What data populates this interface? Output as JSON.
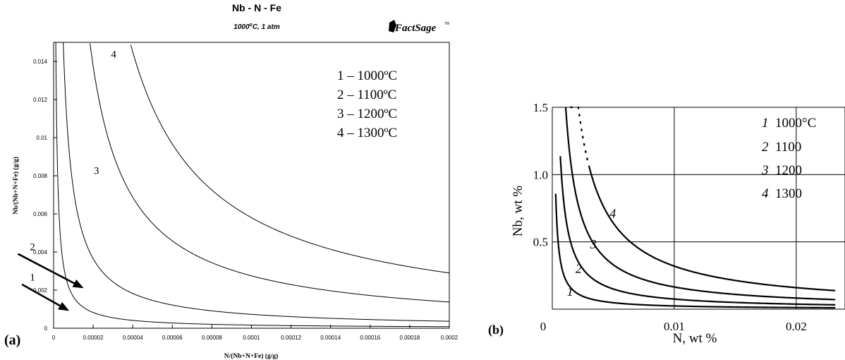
{
  "colors": {
    "curve": "#000000",
    "axis": "#000000",
    "grid": "#000000",
    "background": "#ffffff"
  },
  "chart_data": [
    {
      "id": "a",
      "type": "line",
      "panel_label": "(a)",
      "title": "Nb - N - Fe",
      "subtitle_pre": "1000",
      "subtitle_deg": "o",
      "subtitle_post": "C, 1 atm",
      "logo": "FactSage",
      "logo_mark": "TM",
      "xlabel": "N/(Nb+N+Fe) (g/g)",
      "ylabel": "Nb/(Nb+N+Fe) (g/g)",
      "xlim": [
        0,
        0.0002
      ],
      "ylim": [
        0,
        0.015
      ],
      "xticks": [
        0,
        2e-05,
        4e-05,
        6e-05,
        8e-05,
        0.0001,
        0.00012,
        0.00014,
        0.00016,
        0.00018,
        0.0002
      ],
      "xtick_labels": [
        "0",
        "0.00002",
        "0.00004",
        "0.00006",
        "0.00008",
        "0.0001",
        "0.00012",
        "0.00014",
        "0.00016",
        "0.00018",
        "0.0002"
      ],
      "yticks": [
        0,
        0.002,
        0.004,
        0.006,
        0.008,
        0.01,
        0.012,
        0.014
      ],
      "ytick_labels": [
        "0",
        "0.002",
        "0.004",
        "0.006",
        "0.008",
        "0.01",
        "0.012",
        "0.014"
      ],
      "grid": false,
      "legend": {
        "placement": "top-right",
        "entries": [
          "1 – 1000ºC",
          "2 – 1100ºC",
          "3 – 1200ºC",
          "4 – 1300ºC"
        ]
      },
      "series": [
        {
          "label": "1",
          "k": 1.65e-08,
          "x_start": 1.1e-06,
          "label_at": [
            -1.2e-05,
            0.0025
          ]
        },
        {
          "label": "2",
          "k": 7.3e-08,
          "x_start": 4.8e-06,
          "label_at": [
            -1.2e-05,
            0.0041
          ]
        },
        {
          "label": "3",
          "k": 2.75e-07,
          "x_start": 1.84e-05,
          "label_at": [
            2.03e-05,
            0.0081
          ]
        },
        {
          "label": "4",
          "k": 5.8e-07,
          "x_start": 3.9e-05,
          "label_at": [
            2.9e-05,
            0.0142
          ]
        }
      ],
      "arrows": [
        {
          "from": [
            -1.6e-05,
            0.0023
          ],
          "to": [
            7.9e-06,
            0.00091
          ]
        },
        {
          "from": [
            -1.8e-05,
            0.0039
          ],
          "to": [
            1.52e-05,
            0.0021
          ]
        }
      ]
    },
    {
      "id": "b",
      "type": "line",
      "panel_label": "(b)",
      "xlabel": "N, wt %",
      "ylabel": "Nb, wt %",
      "xlim": [
        0,
        0.024
      ],
      "ylim": [
        0,
        1.5
      ],
      "xticks": [
        0,
        0.01,
        0.02
      ],
      "xtick_labels": [
        "0",
        "0.01",
        "0.02"
      ],
      "yticks": [
        0.5,
        1.0,
        1.5
      ],
      "ytick_labels": [
        "0.5",
        "1.0",
        "1.5"
      ],
      "grid": true,
      "legend": {
        "placement": "top-right",
        "entries": [
          {
            "num": "1",
            "text": "1000°C"
          },
          {
            "num": "2",
            "text": "1100"
          },
          {
            "num": "3",
            "text": "1200"
          },
          {
            "num": "4",
            "text": "1300"
          }
        ]
      },
      "series": [
        {
          "label": "1",
          "k": 0.00024,
          "x_start": 0.00028,
          "label_at": [
            0.0012,
            0.1
          ]
        },
        {
          "label": "2",
          "k": 0.00075,
          "x_start": 0.00066,
          "label_at": [
            0.0019,
            0.27
          ]
        },
        {
          "label": "3",
          "k": 0.00165,
          "x_start": 0.0011,
          "label_at": [
            0.0031,
            0.45
          ]
        },
        {
          "label": "4",
          "k": 0.0032,
          "x_start": 0.003,
          "dotted_start": 0.0015,
          "label_at": [
            0.0047,
            0.68
          ]
        }
      ]
    }
  ]
}
